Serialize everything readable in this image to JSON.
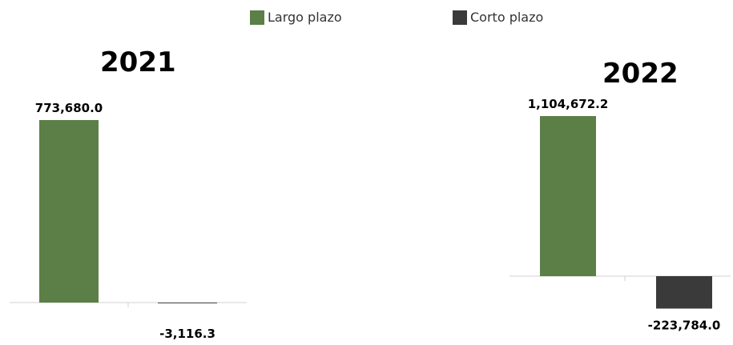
{
  "legend": {
    "items": [
      {
        "label": "Largo plazo",
        "color": "#5b7f46"
      },
      {
        "label": "Corto plazo",
        "color": "#3a3a3a"
      }
    ]
  },
  "chart_data": [
    {
      "type": "bar",
      "title": "2021",
      "categories": [
        "Largo plazo",
        "Corto plazo"
      ],
      "values": [
        773680.0,
        -3116.3
      ],
      "data_labels": [
        "773,680.0",
        "-3,116.3"
      ],
      "colors": [
        "#5b7f46",
        "#3a3a3a"
      ],
      "ylim": [
        -10000,
        800000
      ]
    },
    {
      "type": "bar",
      "title": "2022",
      "categories": [
        "Largo plazo",
        "Corto plazo"
      ],
      "values": [
        1104672.2,
        -223784.0
      ],
      "data_labels": [
        "1,104,672.2",
        "-223,784.0"
      ],
      "colors": [
        "#5b7f46",
        "#3a3a3a"
      ],
      "ylim": [
        -230000,
        1200000
      ]
    }
  ]
}
